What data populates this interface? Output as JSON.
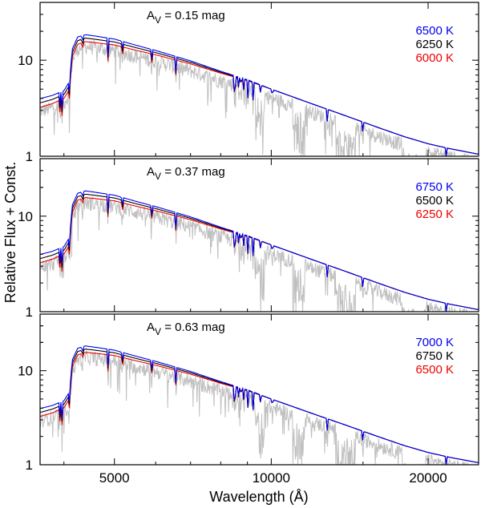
{
  "chart_data": {
    "type": "line",
    "xlabel": "Wavelength (Å)",
    "ylabel": "Relative Flux + Const.",
    "xscale": "log",
    "yscale": "log",
    "xlim": [
      3600,
      25000
    ],
    "ylim": [
      1,
      40
    ],
    "xticks": [
      {
        "value": 5000,
        "label": "5000"
      },
      {
        "value": 10000,
        "label": "10000"
      },
      {
        "value": 20000,
        "label": "20000"
      }
    ],
    "yticks": [
      {
        "value": 1,
        "label": "1"
      },
      {
        "value": 10,
        "label": "10"
      }
    ],
    "panels": [
      {
        "annotation": {
          "prefix": "A",
          "subscript": "V",
          "suffix": " = 0.15 mag"
        },
        "series": [
          {
            "name": "6500 K",
            "color": "#0000ee",
            "temp": 6500
          },
          {
            "name": "6250 K",
            "color": "#000000",
            "temp": 6250
          },
          {
            "name": "6000 K",
            "color": "#ee0000",
            "temp": 6000
          }
        ]
      },
      {
        "annotation": {
          "prefix": "A",
          "subscript": "V",
          "suffix": " = 0.37 mag"
        },
        "series": [
          {
            "name": "6750 K",
            "color": "#0000ee",
            "temp": 6750
          },
          {
            "name": "6500 K",
            "color": "#000000",
            "temp": 6500
          },
          {
            "name": "6250 K",
            "color": "#ee0000",
            "temp": 6250
          }
        ]
      },
      {
        "annotation": {
          "prefix": "A",
          "subscript": "V",
          "suffix": " = 0.63 mag"
        },
        "series": [
          {
            "name": "7000 K",
            "color": "#0000ee",
            "temp": 7000
          },
          {
            "name": "6750 K",
            "color": "#000000",
            "temp": 6750
          },
          {
            "name": "6500 K",
            "color": "#ee0000",
            "temp": 6500
          }
        ]
      }
    ],
    "observed_spectrum": {
      "name": "observed",
      "color": "#c0c0c0"
    },
    "model_sed": {
      "wavelengths": [
        3600,
        3800,
        4000,
        4100,
        4150,
        4250,
        4400,
        4600,
        5000,
        5500,
        6000,
        7000,
        8000,
        9000,
        10000,
        12000,
        14000,
        16000,
        18000,
        20000,
        22000,
        25000
      ],
      "flux": [
        3.6,
        3.9,
        4.4,
        5.5,
        12,
        16,
        17,
        16.5,
        15.5,
        13.5,
        12,
        9.5,
        7.5,
        6.2,
        5.0,
        3.5,
        2.6,
        2.0,
        1.6,
        1.35,
        1.2,
        1.05
      ]
    }
  }
}
